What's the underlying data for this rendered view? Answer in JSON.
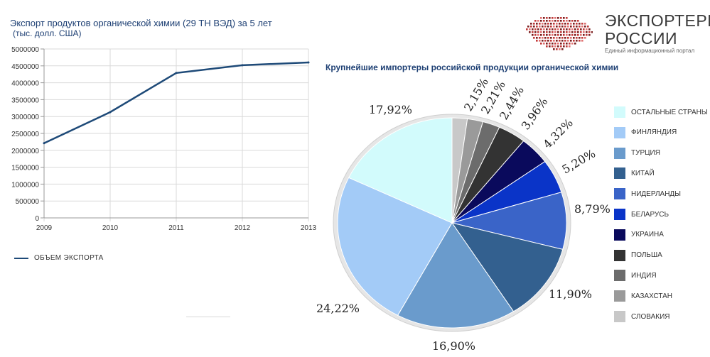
{
  "header": {
    "title": "Экспорт продуктов органической химии (29 ТН ВЭД) за 5 лет",
    "subtitle": "(тыс. долл. США)"
  },
  "logo": {
    "line1": "ЭКСПОРТЕРЫ",
    "line2": "РОССИИ",
    "tagline": "Единый информационный портал"
  },
  "chart_data": [
    {
      "type": "line",
      "x": [
        "2009",
        "2010",
        "2011",
        "2012",
        "2013"
      ],
      "series": [
        {
          "name": "ОБЪЕМ ЭКСПОРТА",
          "values": [
            2210000,
            3130000,
            4290000,
            4520000,
            4600000
          ],
          "color": "#1e4a78"
        }
      ],
      "yticks": [
        "0",
        "500000",
        "1000000",
        "1500000",
        "2000000",
        "2500000",
        "3000000",
        "3500000",
        "4000000",
        "4500000",
        "5000000"
      ],
      "ylim": [
        0,
        5000000
      ],
      "grid": true,
      "legend": "bottom-left"
    },
    {
      "type": "pie",
      "title": "Крупнейшие импортеры российской продукции органической химии",
      "slices": [
        {
          "name": "СЛОВАКИЯ",
          "value": 2.15,
          "label": "2,15%",
          "color": "#c8c8c8"
        },
        {
          "name": "КАЗАХСТАН",
          "value": 2.21,
          "label": "2,21%",
          "color": "#9a9a9a"
        },
        {
          "name": "ИНДИЯ",
          "value": 2.44,
          "label": "2,44%",
          "color": "#6c6c6c"
        },
        {
          "name": "ПОЛЬША",
          "value": 3.96,
          "label": "3,96%",
          "color": "#333333"
        },
        {
          "name": "УКРАИНА",
          "value": 4.32,
          "label": "4,32%",
          "color": "#0a0a5c"
        },
        {
          "name": "БЕЛАРУСЬ",
          "value": 5.2,
          "label": "5,20%",
          "color": "#0a34c8"
        },
        {
          "name": "НИДЕРЛАНДЫ",
          "value": 8.79,
          "label": "8,79%",
          "color": "#3a64c8"
        },
        {
          "name": "КИТАЙ",
          "value": 11.9,
          "label": "11,90%",
          "color": "#33608f"
        },
        {
          "name": "ТУРЦИЯ",
          "value": 16.9,
          "label": "16,90%",
          "color": "#6a9bcc"
        },
        {
          "name": "ФИНЛЯНДИЯ",
          "value": 24.22,
          "label": "24,22%",
          "color": "#a3cbf7"
        },
        {
          "name": "ОСТАЛЬНЫЕ СТРАНЫ",
          "value": 17.92,
          "label": "17,92%",
          "color": "#d2fbfc"
        }
      ],
      "legend": "right",
      "legend_order": [
        "ОСТАЛЬНЫЕ СТРАНЫ",
        "ФИНЛЯНДИЯ",
        "ТУРЦИЯ",
        "КИТАЙ",
        "НИДЕРЛАНДЫ",
        "БЕЛАРУСЬ",
        "УКРАИНА",
        "ПОЛЬША",
        "ИНДИЯ",
        "КАЗАХСТАН",
        "СЛОВАКИЯ"
      ]
    }
  ]
}
